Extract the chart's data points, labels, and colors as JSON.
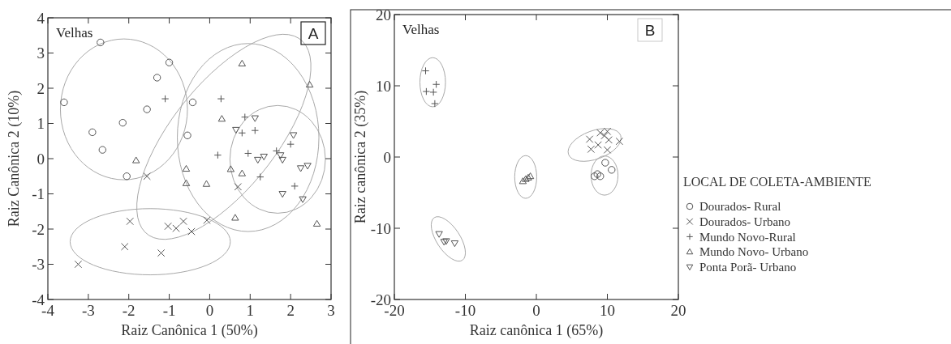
{
  "chart_data": [
    {
      "type": "scatter",
      "xlabel": "Raiz Canônica 1 (50%)",
      "ylabel": "Raiz Canônica 2 (10%)",
      "annotations": [
        "Velhas",
        "A"
      ],
      "xlim": [
        -4,
        3
      ],
      "ylim": [
        -4,
        4
      ],
      "xticks": [
        -4,
        -3,
        -2,
        -1,
        0,
        1,
        2,
        3
      ],
      "yticks": [
        -4,
        -3,
        -2,
        -1,
        0,
        1,
        2,
        3,
        4
      ],
      "grid": false,
      "legend": false,
      "series": [
        {
          "type": "scatter",
          "marker": "circle",
          "color": "#555555",
          "x": [
            -3.6,
            -2.7,
            -2.9,
            -2.65,
            -2.15,
            -2.05,
            -1.55,
            -1.3,
            -1.0,
            -0.55,
            -0.42
          ],
          "values": [
            1.6,
            3.3,
            0.75,
            0.25,
            1.02,
            -0.5,
            1.4,
            2.3,
            2.73,
            0.66,
            1.6
          ]
        },
        {
          "type": "scatter",
          "marker": "cross",
          "color": "#555555",
          "x": [
            -3.25,
            -2.1,
            -1.97,
            -1.55,
            -1.2,
            -1.03,
            -0.83,
            -0.65,
            -0.45,
            -0.07,
            0.7
          ],
          "values": [
            -3.0,
            -2.5,
            -1.78,
            -0.5,
            -2.68,
            -1.92,
            -1.98,
            -1.78,
            -2.07,
            -1.75,
            -0.8
          ]
        },
        {
          "type": "scatter",
          "marker": "plus",
          "color": "#555555",
          "x": [
            -1.1,
            0.2,
            0.28,
            0.8,
            0.87,
            0.95,
            1.12,
            1.25,
            1.65,
            2.0,
            2.1
          ],
          "values": [
            1.7,
            0.1,
            1.7,
            0.73,
            1.18,
            0.15,
            0.8,
            -0.52,
            0.22,
            0.41,
            -0.78
          ]
        },
        {
          "type": "scatter",
          "marker": "triangle",
          "color": "#555555",
          "x": [
            -1.82,
            -0.58,
            -0.58,
            -0.08,
            0.3,
            0.52,
            0.8,
            0.8,
            0.63,
            2.47,
            2.65
          ],
          "values": [
            -0.05,
            -0.29,
            -0.7,
            -0.72,
            1.13,
            -0.3,
            2.7,
            -0.42,
            -1.68,
            2.1,
            -1.85
          ]
        },
        {
          "type": "scatter",
          "marker": "triangle-down",
          "color": "#555555",
          "x": [
            0.65,
            1.12,
            1.19,
            1.34,
            1.75,
            1.8,
            1.8,
            2.07,
            2.25,
            2.42,
            2.3
          ],
          "values": [
            0.82,
            1.15,
            -0.03,
            0.06,
            0.1,
            -0.03,
            -1.0,
            0.67,
            -0.27,
            -0.2,
            -1.15
          ]
        }
      ]
    },
    {
      "type": "scatter",
      "xlabel": "Raiz canônica 1 (65%)",
      "ylabel": "Raiz canônica 2 (35%)",
      "annotations": [
        "Velhas",
        "B"
      ],
      "legend_title": "LOCAL DE COLETA-AMBIENTE",
      "xlim": [
        -20,
        20
      ],
      "ylim": [
        -20,
        20
      ],
      "xticks": [
        -20,
        -10,
        0,
        10,
        20
      ],
      "yticks": [
        -20,
        -10,
        0,
        10,
        20
      ],
      "grid": false,
      "legend": "right",
      "series": [
        {
          "type": "scatter",
          "name": "Dourados- Rural",
          "marker": "circle",
          "color": "#555555",
          "x": [
            8.2,
            8.6,
            9.0,
            9.7,
            10.6
          ],
          "values": [
            -2.7,
            -2.4,
            -2.7,
            -0.8,
            -1.8
          ]
        },
        {
          "type": "scatter",
          "name": "Dourados- Urbano",
          "marker": "cross",
          "color": "#555555",
          "x": [
            7.5,
            7.7,
            8.7,
            9.0,
            9.6,
            10.0,
            10.2,
            10.0,
            11.7
          ],
          "values": [
            2.5,
            1.1,
            1.7,
            3.4,
            3.0,
            3.6,
            2.4,
            1.0,
            2.2
          ]
        },
        {
          "type": "scatter",
          "name": "Mundo Novo-Rural",
          "marker": "plus",
          "color": "#555555",
          "x": [
            -15.6,
            -15.5,
            -14.5,
            -14.1,
            -14.3
          ],
          "values": [
            12.1,
            9.2,
            9.1,
            10.2,
            7.5
          ]
        },
        {
          "type": "scatter",
          "name": "Mundo Novo- Urbano",
          "marker": "triangle",
          "color": "#555555",
          "x": [
            -1.9,
            -1.5,
            -1.15,
            -0.85
          ],
          "values": [
            -3.4,
            -3.1,
            -2.9,
            -2.7
          ]
        },
        {
          "type": "scatter",
          "name": "Ponta Porã- Urbano",
          "marker": "triangle-down",
          "color": "#555555",
          "x": [
            -13.7,
            -13.0,
            -12.7,
            -11.5
          ],
          "values": [
            -10.8,
            -11.9,
            -11.8,
            -12.1
          ]
        }
      ]
    }
  ]
}
